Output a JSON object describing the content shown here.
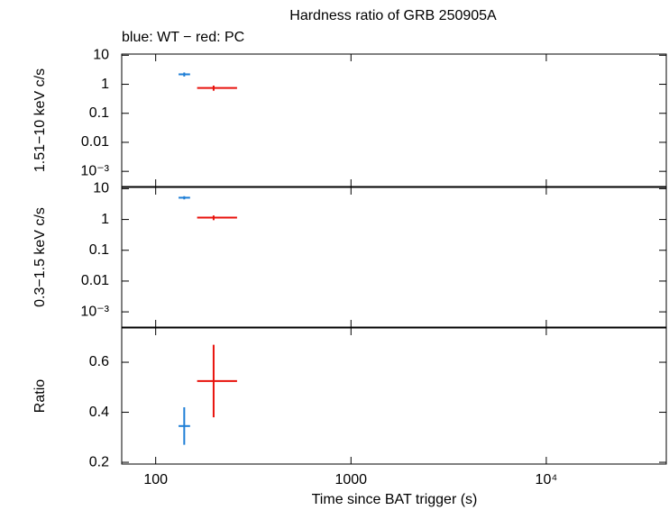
{
  "title": "Hardness ratio of GRB 250905A",
  "subtitle": "blue: WT − red: PC",
  "chart_data": [
    {
      "type": "errorbar",
      "ylabel": "1.51−10 keV c/s",
      "log_x": true,
      "log_y": true,
      "xlim": [
        67,
        41600
      ],
      "xticks": [
        100,
        1000,
        {
          "value": 10000,
          "label": "10⁴"
        }
      ],
      "xtick_labels": false,
      "ylim": [
        0.0003,
        11
      ],
      "yticks": [
        10,
        1,
        0.1,
        0.01,
        {
          "value": 0.001,
          "label": "10⁻³"
        }
      ],
      "series": [
        {
          "color": "#1f7fd6",
          "x": [
            140
          ],
          "x_err_minus": [
            9
          ],
          "x_err_plus": [
            10
          ],
          "values": [
            2.2
          ],
          "y_err": [
            0.35
          ]
        },
        {
          "color": "#e8120c",
          "x": [
            198
          ],
          "x_err_minus": [
            35
          ],
          "x_err_plus": [
            63
          ],
          "values": [
            0.75
          ],
          "y_err": [
            0.15
          ]
        }
      ]
    },
    {
      "type": "errorbar",
      "ylabel": "0.3−1.5 keV c/s",
      "log_x": true,
      "log_y": true,
      "xlim": [
        67,
        41600
      ],
      "xticks": [
        100,
        1000,
        {
          "value": 10000,
          "label": "10⁴"
        }
      ],
      "xtick_labels": false,
      "ylim": [
        0.00032,
        11
      ],
      "yticks": [
        10,
        1,
        0.1,
        0.01,
        {
          "value": 0.001,
          "label": "10⁻³"
        }
      ],
      "series": [
        {
          "color": "#1f7fd6",
          "x": [
            140
          ],
          "x_err_minus": [
            9
          ],
          "x_err_plus": [
            10
          ],
          "values": [
            5.1
          ],
          "y_err": [
            0.6
          ]
        },
        {
          "color": "#e8120c",
          "x": [
            198
          ],
          "x_err_minus": [
            35
          ],
          "x_err_plus": [
            63
          ],
          "values": [
            1.15
          ],
          "y_err": [
            0.2
          ]
        }
      ]
    },
    {
      "type": "errorbar",
      "ylabel": "Ratio",
      "xlabel": "Time since BAT trigger (s)",
      "log_x": true,
      "log_y": false,
      "xlim": [
        67,
        41600
      ],
      "xticks": [
        100,
        1000,
        {
          "value": 10000,
          "label": "10⁴"
        }
      ],
      "xtick_labels": true,
      "ylim": [
        0.193,
        0.737
      ],
      "yticks": [
        0.6,
        0.4,
        0.2
      ],
      "series": [
        {
          "color": "#1f7fd6",
          "x": [
            140
          ],
          "x_err_minus": [
            9
          ],
          "x_err_plus": [
            10
          ],
          "values": [
            0.345
          ],
          "y_err": [
            0.075
          ]
        },
        {
          "color": "#e8120c",
          "x": [
            198
          ],
          "x_err_minus": [
            35
          ],
          "x_err_plus": [
            63
          ],
          "values": [
            0.525
          ],
          "y_err": [
            0.145
          ]
        }
      ]
    }
  ]
}
